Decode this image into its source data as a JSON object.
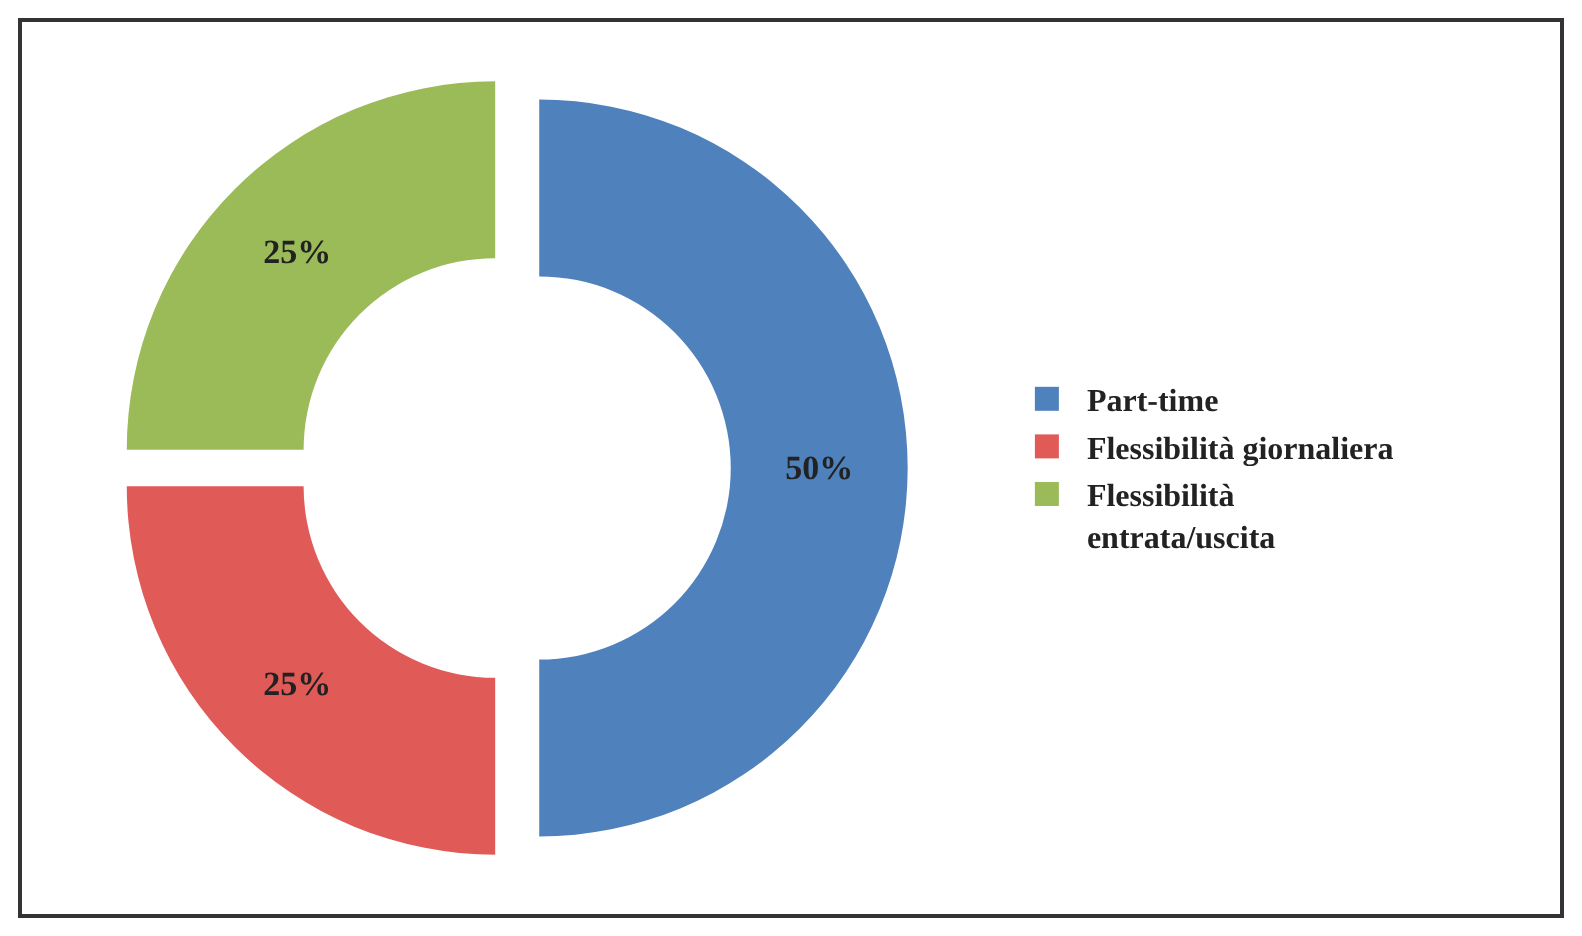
{
  "chart_data": {
    "type": "donut",
    "categories": [
      "Part-time",
      "Flessibilità giornaliera",
      "Flessibilità entrata/uscita"
    ],
    "values": [
      50,
      25,
      25
    ],
    "colors": [
      "#4f81bd",
      "#e05b57",
      "#9bbb59"
    ],
    "value_labels": [
      "50%",
      "25%",
      "25%"
    ],
    "legend": "right"
  }
}
